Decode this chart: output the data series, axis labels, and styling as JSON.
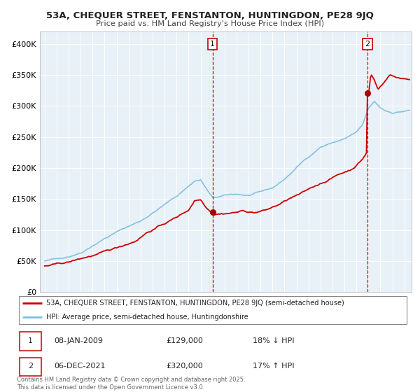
{
  "title": "53A, CHEQUER STREET, FENSTANTON, HUNTINGDON, PE28 9JQ",
  "subtitle": "Price paid vs. HM Land Registry's House Price Index (HPI)",
  "background_color": "#ffffff",
  "plot_bg_color": "#e8f0f8",
  "grid_color": "#ffffff",
  "hpi_color": "#7fbfdf",
  "price_color": "#cc0000",
  "marker_color": "#aa0000",
  "legend_line1": "53A, CHEQUER STREET, FENSTANTON, HUNTINGDON, PE28 9JQ (semi-detached house)",
  "legend_line2": "HPI: Average price, semi-detached house, Huntingdonshire",
  "table_row1": [
    "1",
    "08-JAN-2009",
    "£129,000",
    "18% ↓ HPI"
  ],
  "table_row2": [
    "2",
    "06-DEC-2021",
    "£320,000",
    "17% ↑ HPI"
  ],
  "footnote": "Contains HM Land Registry data © Crown copyright and database right 2025.\nThis data is licensed under the Open Government Licence v3.0.",
  "ylim": [
    0,
    420000
  ],
  "yticks": [
    0,
    50000,
    100000,
    150000,
    200000,
    250000,
    300000,
    350000,
    400000
  ],
  "ytick_labels": [
    "£0",
    "£50K",
    "£100K",
    "£150K",
    "£200K",
    "£250K",
    "£300K",
    "£350K",
    "£400K"
  ],
  "start_year": 1995,
  "end_year": 2025
}
